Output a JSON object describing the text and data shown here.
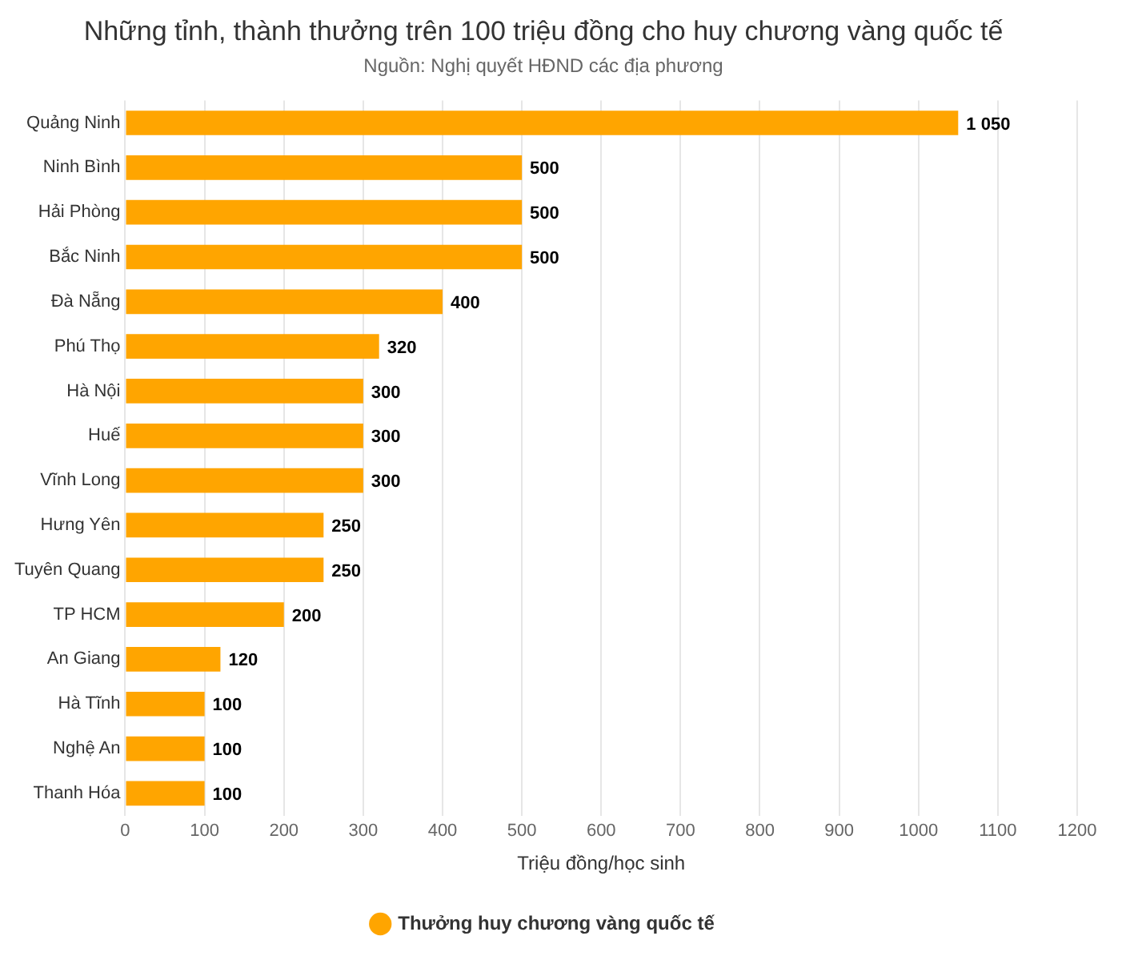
{
  "chart_data": {
    "type": "bar",
    "orientation": "horizontal",
    "title": "Những tỉnh, thành thưởng trên 100 triệu đồng cho huy chương vàng quốc tế",
    "subtitle": "Nguồn: Nghị quyết HĐND các địa phương",
    "xlabel": "Triệu đồng/học sinh",
    "categories": [
      "Quảng Ninh",
      "Ninh Bình",
      "Hải Phòng",
      "Bắc Ninh",
      "Đà Nẵng",
      "Phú Thọ",
      "Hà Nội",
      "Huế",
      "Vĩnh Long",
      "Hưng Yên",
      "Tuyên Quang",
      "TP HCM",
      "An Giang",
      "Hà Tĩnh",
      "Nghệ An",
      "Thanh Hóa"
    ],
    "series": [
      {
        "name": "Thưởng huy chương vàng quốc tế",
        "color": "#ffa500",
        "values": [
          1050,
          500,
          500,
          500,
          400,
          320,
          300,
          300,
          300,
          250,
          250,
          200,
          120,
          100,
          100,
          100
        ],
        "value_labels": [
          "1 050",
          "500",
          "500",
          "500",
          "400",
          "320",
          "300",
          "300",
          "300",
          "250",
          "250",
          "200",
          "120",
          "100",
          "100",
          "100"
        ]
      }
    ],
    "xlim": [
      0,
      1200
    ],
    "xticks": [
      0,
      100,
      200,
      300,
      400,
      500,
      600,
      700,
      800,
      900,
      1000,
      1100,
      1200
    ],
    "grid": "x",
    "legend": "bottom"
  }
}
